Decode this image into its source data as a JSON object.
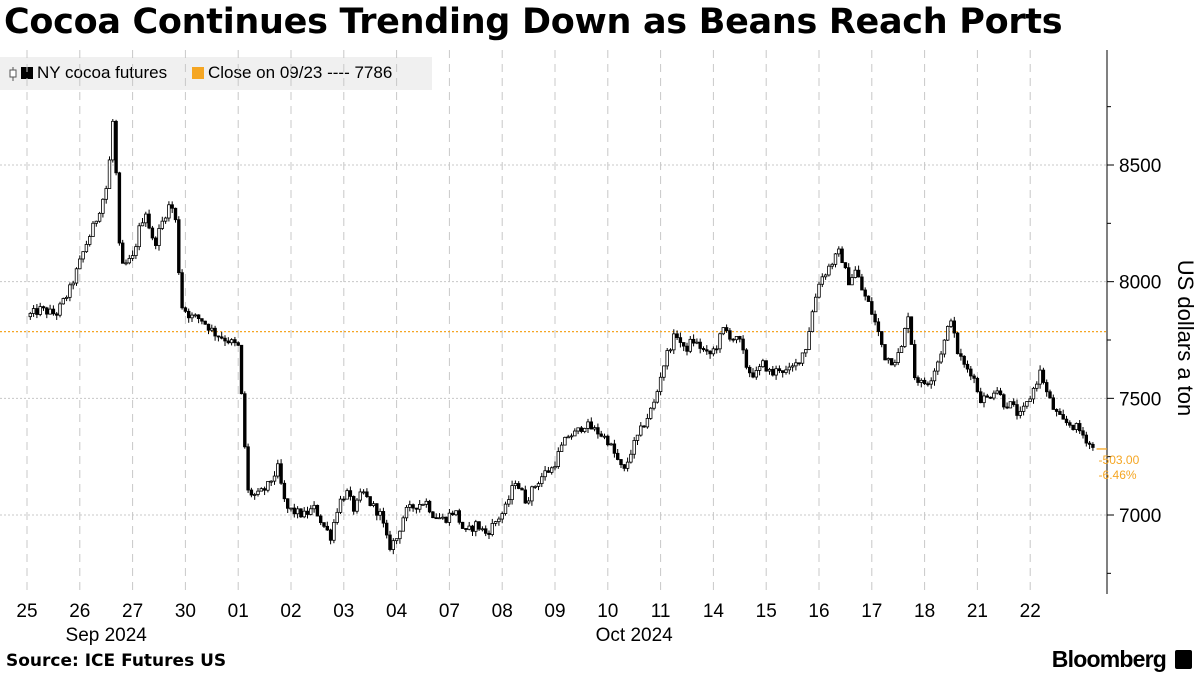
{
  "title": "Cocoa Continues Trending Down as Beans Reach Ports",
  "source": "Source: ICE Futures US",
  "brand": "Bloomberg",
  "legend": {
    "series_label": "NY cocoa futures",
    "ref_label": "Close on 09/23 ---- 7786"
  },
  "colors": {
    "series": "#000000",
    "reference": "#f5a623",
    "grid": "#c8c8c8",
    "legend_bg": "#f0f0f0"
  },
  "chart_data": {
    "type": "candlestick",
    "title": "Cocoa Continues Trending Down as Beans Reach Ports",
    "ylabel": "US dollars a ton",
    "ylim": [
      6740,
      8950
    ],
    "yticks": [
      7000,
      7500,
      8000,
      8500
    ],
    "ytick_labels": [
      "7000",
      "7500",
      "8000",
      "8500"
    ],
    "xticks": [
      "25",
      "26",
      "27",
      "30",
      "01",
      "02",
      "03",
      "04",
      "07",
      "08",
      "09",
      "10",
      "11",
      "14",
      "15",
      "16",
      "17",
      "18",
      "21",
      "22"
    ],
    "month_labels": [
      {
        "label": "Sep 2024",
        "at_tick": 1.5
      },
      {
        "label": "Oct 2024",
        "at_tick": 11.5
      }
    ],
    "reference_line": {
      "label": "Close on 09/23",
      "value": 7786
    },
    "last_annotation": {
      "value": 7283,
      "change": "-503.00",
      "change_pct": "-6.46%"
    },
    "series": [
      {
        "name": "NY cocoa futures",
        "path": [
          [
            0.0,
            7850
          ],
          [
            0.25,
            7880
          ],
          [
            0.55,
            7860
          ],
          [
            0.8,
            7960
          ],
          [
            0.95,
            8050
          ],
          [
            1.1,
            8150
          ],
          [
            1.3,
            8260
          ],
          [
            1.5,
            8400
          ],
          [
            1.58,
            8550
          ],
          [
            1.65,
            8760
          ],
          [
            1.72,
            8200
          ],
          [
            1.8,
            8060
          ],
          [
            2.0,
            8100
          ],
          [
            2.15,
            8250
          ],
          [
            2.25,
            8300
          ],
          [
            2.4,
            8150
          ],
          [
            2.6,
            8280
          ],
          [
            2.7,
            8330
          ],
          [
            2.8,
            8300
          ],
          [
            2.92,
            7900
          ],
          [
            3.1,
            7850
          ],
          [
            3.3,
            7840
          ],
          [
            3.55,
            7780
          ],
          [
            3.8,
            7750
          ],
          [
            4.0,
            7720
          ],
          [
            4.08,
            7450
          ],
          [
            4.18,
            7100
          ],
          [
            4.35,
            7080
          ],
          [
            4.55,
            7120
          ],
          [
            4.75,
            7200
          ],
          [
            4.9,
            7030
          ],
          [
            5.1,
            7010
          ],
          [
            5.25,
            7000
          ],
          [
            5.45,
            7030
          ],
          [
            5.6,
            6960
          ],
          [
            5.75,
            6910
          ],
          [
            5.9,
            7050
          ],
          [
            6.05,
            7100
          ],
          [
            6.2,
            7020
          ],
          [
            6.35,
            7100
          ],
          [
            6.5,
            7050
          ],
          [
            6.7,
            7000
          ],
          [
            6.85,
            6860
          ],
          [
            7.0,
            6900
          ],
          [
            7.15,
            7010
          ],
          [
            7.35,
            7040
          ],
          [
            7.55,
            7060
          ],
          [
            7.7,
            7000
          ],
          [
            7.9,
            6980
          ],
          [
            8.1,
            7020
          ],
          [
            8.3,
            6920
          ],
          [
            8.5,
            6960
          ],
          [
            8.7,
            6920
          ],
          [
            8.9,
            6980
          ],
          [
            9.05,
            7020
          ],
          [
            9.25,
            7150
          ],
          [
            9.45,
            7060
          ],
          [
            9.6,
            7120
          ],
          [
            9.8,
            7180
          ],
          [
            9.95,
            7200
          ],
          [
            10.1,
            7280
          ],
          [
            10.25,
            7340
          ],
          [
            10.4,
            7350
          ],
          [
            10.55,
            7390
          ],
          [
            10.7,
            7370
          ],
          [
            10.85,
            7350
          ],
          [
            11.0,
            7320
          ],
          [
            11.15,
            7250
          ],
          [
            11.3,
            7180
          ],
          [
            11.45,
            7280
          ],
          [
            11.6,
            7350
          ],
          [
            11.75,
            7420
          ],
          [
            11.9,
            7490
          ],
          [
            12.0,
            7600
          ],
          [
            12.15,
            7710
          ],
          [
            12.3,
            7780
          ],
          [
            12.45,
            7700
          ],
          [
            12.6,
            7750
          ],
          [
            12.75,
            7720
          ],
          [
            12.9,
            7680
          ],
          [
            13.05,
            7720
          ],
          [
            13.2,
            7800
          ],
          [
            13.35,
            7760
          ],
          [
            13.5,
            7740
          ],
          [
            13.65,
            7620
          ],
          [
            13.8,
            7600
          ],
          [
            13.95,
            7650
          ],
          [
            14.1,
            7600
          ],
          [
            14.25,
            7630
          ],
          [
            14.4,
            7610
          ],
          [
            14.55,
            7640
          ],
          [
            14.75,
            7720
          ],
          [
            14.9,
            7900
          ],
          [
            15.0,
            8000
          ],
          [
            15.15,
            8050
          ],
          [
            15.3,
            8100
          ],
          [
            15.4,
            8130
          ],
          [
            15.55,
            8000
          ],
          [
            15.7,
            8050
          ],
          [
            15.82,
            7960
          ],
          [
            15.95,
            7900
          ],
          [
            16.1,
            7800
          ],
          [
            16.25,
            7680
          ],
          [
            16.4,
            7660
          ],
          [
            16.55,
            7700
          ],
          [
            16.7,
            7880
          ],
          [
            16.8,
            7600
          ],
          [
            16.95,
            7560
          ],
          [
            17.1,
            7580
          ],
          [
            17.25,
            7660
          ],
          [
            17.4,
            7760
          ],
          [
            17.5,
            7850
          ],
          [
            17.6,
            7710
          ],
          [
            17.75,
            7640
          ],
          [
            17.9,
            7610
          ],
          [
            18.05,
            7500
          ],
          [
            18.2,
            7500
          ],
          [
            18.35,
            7550
          ],
          [
            18.5,
            7480
          ],
          [
            18.65,
            7470
          ],
          [
            18.8,
            7420
          ],
          [
            18.95,
            7480
          ],
          [
            19.1,
            7560
          ],
          [
            19.2,
            7620
          ],
          [
            19.3,
            7530
          ],
          [
            19.45,
            7450
          ],
          [
            19.6,
            7400
          ],
          [
            19.75,
            7390
          ],
          [
            19.9,
            7370
          ],
          [
            20.05,
            7330
          ],
          [
            20.2,
            7280
          ]
        ]
      }
    ]
  }
}
